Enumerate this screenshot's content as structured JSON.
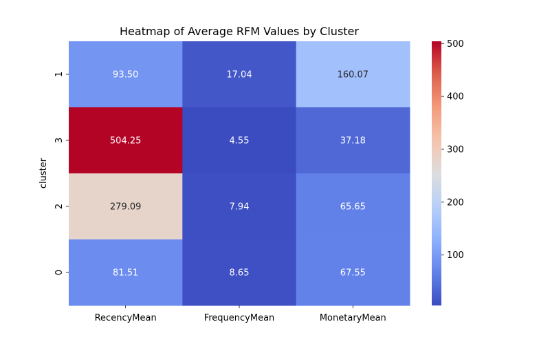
{
  "chart_data": {
    "type": "heatmap",
    "title": "Heatmap of Average RFM Values by Cluster",
    "xlabel": "",
    "ylabel": "cluster",
    "columns": [
      "RecencyMean",
      "FrequencyMean",
      "MonetaryMean"
    ],
    "rows": [
      "1",
      "3",
      "2",
      "0"
    ],
    "values": [
      [
        93.5,
        17.04,
        160.07
      ],
      [
        504.25,
        4.55,
        37.18
      ],
      [
        279.09,
        7.94,
        65.65
      ],
      [
        81.51,
        8.65,
        67.55
      ]
    ],
    "value_labels": [
      [
        "93.50",
        "17.04",
        "160.07"
      ],
      [
        "504.25",
        "4.55",
        "37.18"
      ],
      [
        "279.09",
        "7.94",
        "65.65"
      ],
      [
        "81.51",
        "8.65",
        "67.55"
      ]
    ],
    "colormap": "coolwarm",
    "colorbar": {
      "min": 4.55,
      "max": 504.25,
      "ticks": [
        100,
        200,
        300,
        400,
        500
      ]
    },
    "grid": false
  }
}
